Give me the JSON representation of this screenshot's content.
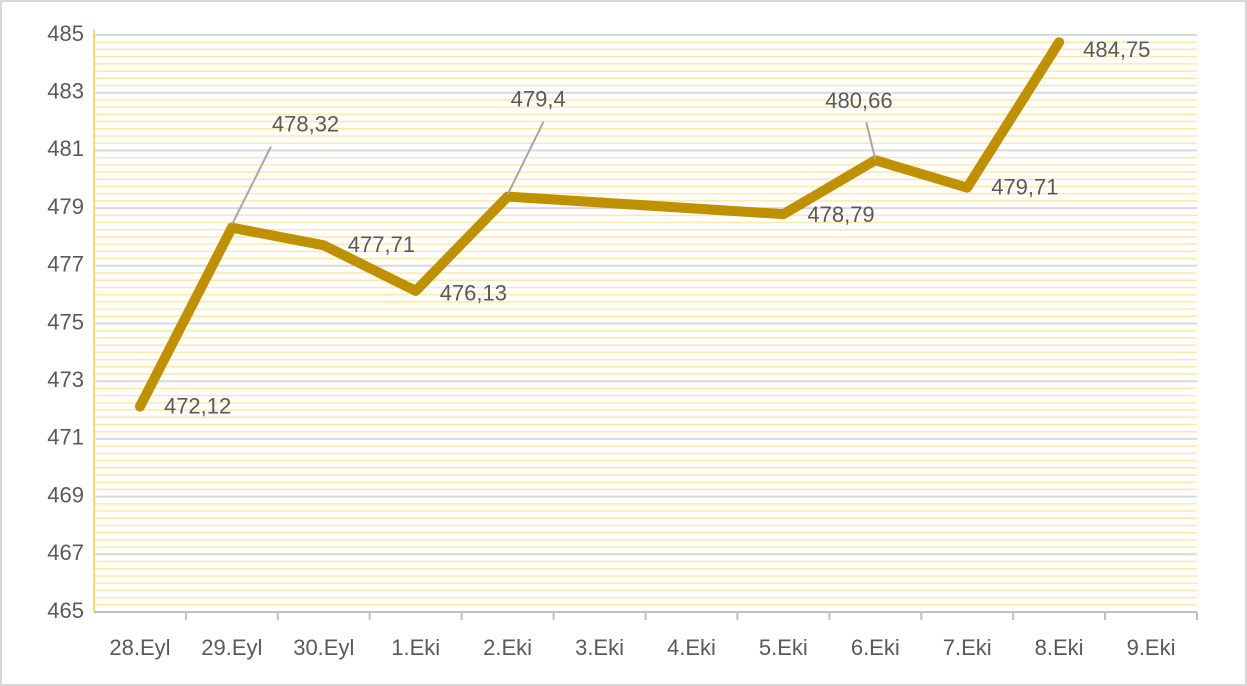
{
  "chart_data": {
    "type": "line",
    "categories": [
      "28.Eyl",
      "29.Eyl",
      "30.Eyl",
      "1.Eki",
      "2.Eki",
      "3.Eki",
      "4.Eki",
      "5.Eki",
      "6.Eki",
      "7.Eki",
      "8.Eki",
      "9.Eki"
    ],
    "series": [
      {
        "name": null,
        "color": "#bf9000",
        "values": [
          472.12,
          478.32,
          477.71,
          476.13,
          479.4,
          null,
          null,
          478.79,
          480.66,
          479.71,
          484.75,
          null
        ],
        "value_labels": [
          "472,12",
          "478,32",
          "477,71",
          "476,13",
          "479,4",
          null,
          null,
          "478,79",
          "480,66",
          "479,71",
          "484,75",
          null
        ]
      }
    ],
    "ylim": [
      465,
      485
    ],
    "yticks": [
      465,
      467,
      469,
      471,
      473,
      475,
      477,
      479,
      481,
      483,
      485
    ],
    "grid": true,
    "minor_grid": true,
    "connect_gaps": true
  }
}
